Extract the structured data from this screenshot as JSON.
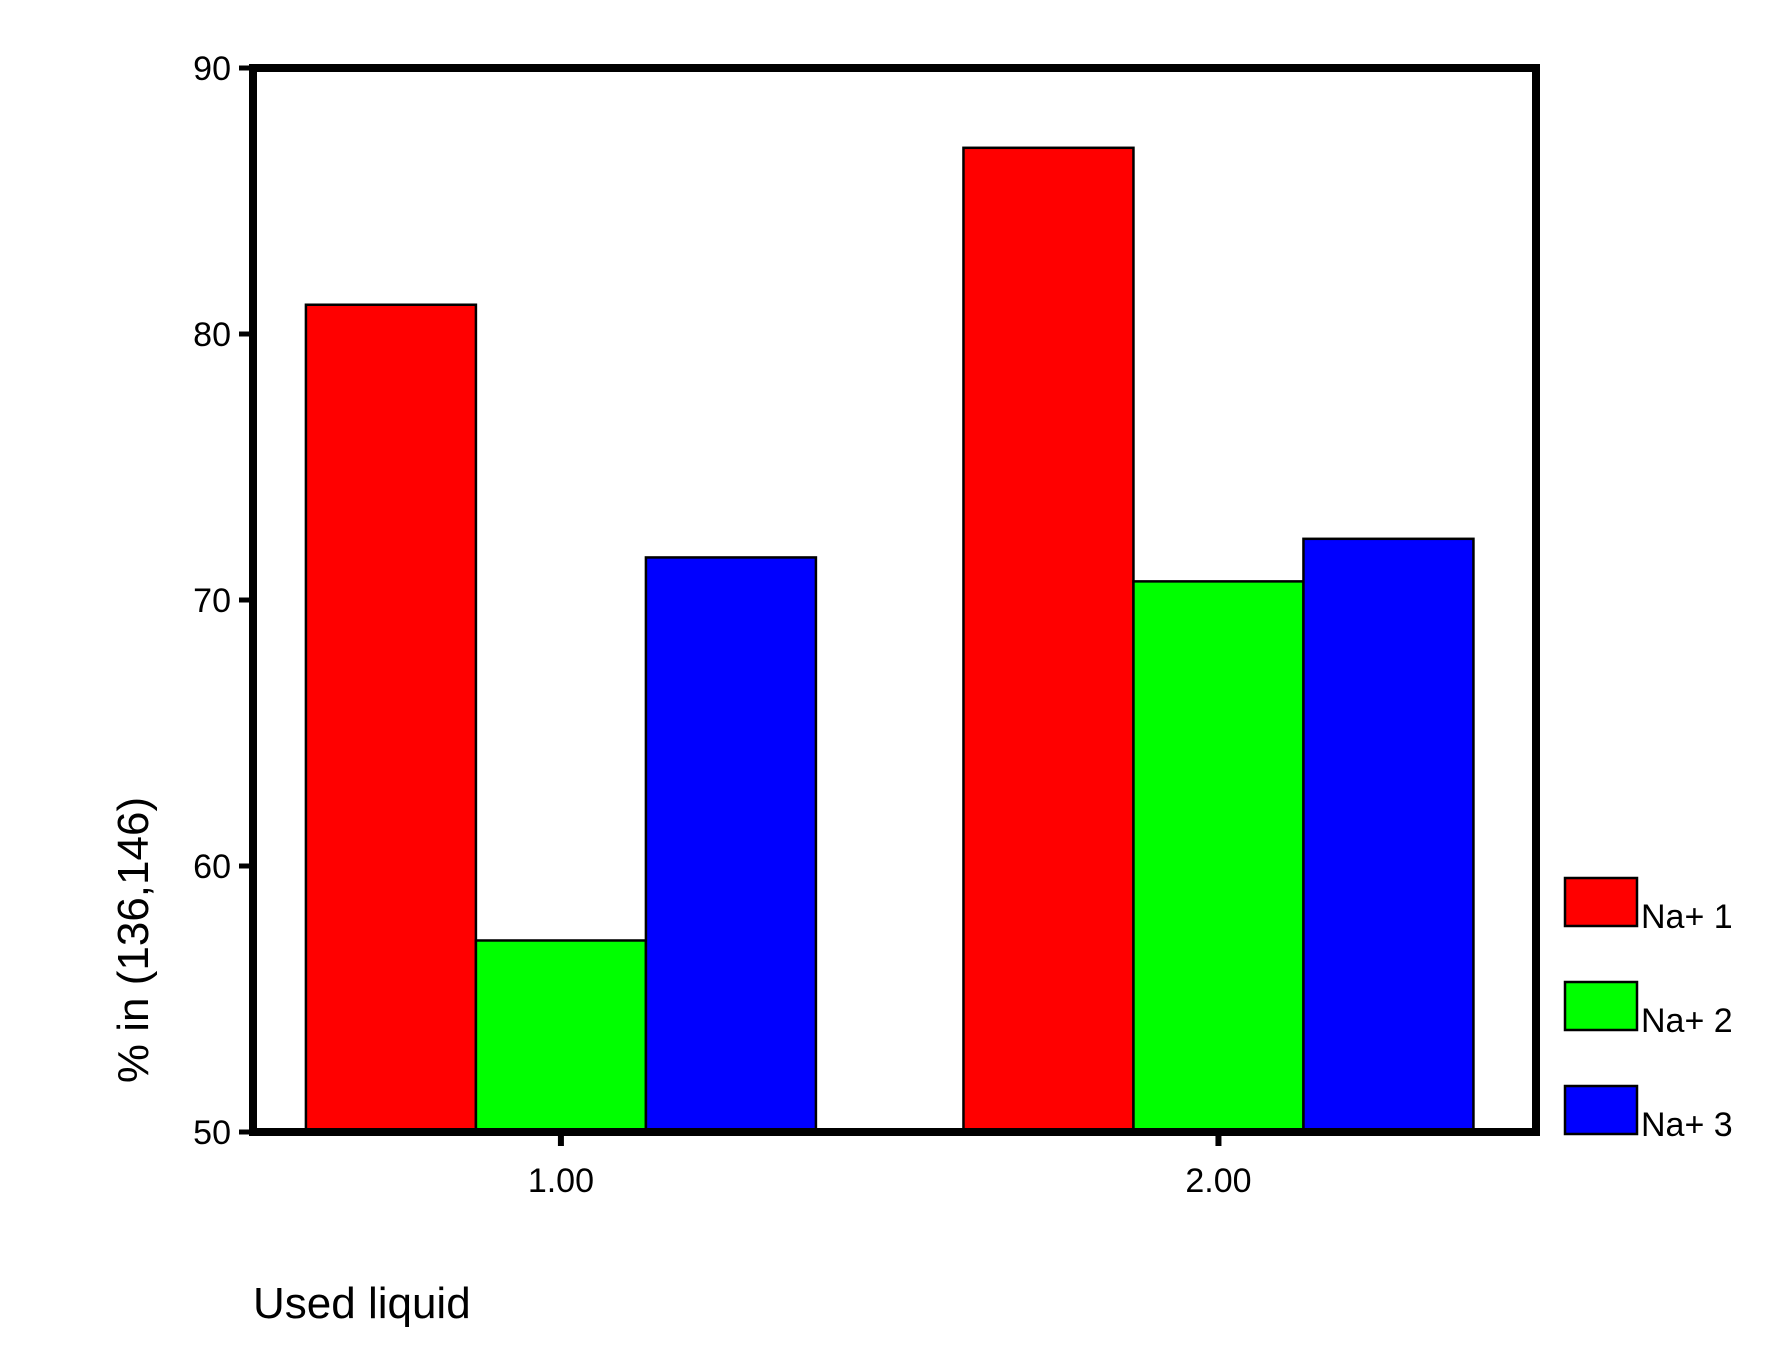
{
  "chart_data": {
    "type": "bar",
    "title": "",
    "xlabel": "Used liquid",
    "ylabel": "% in (136,146)",
    "ylim": [
      50,
      90
    ],
    "yticks": [
      "50",
      "60",
      "70",
      "80",
      "90"
    ],
    "categories": [
      "1.00",
      "2.00"
    ],
    "series": [
      {
        "name": "Na+ 1",
        "color": "#ff0000",
        "values": [
          81.1,
          87.0
        ]
      },
      {
        "name": "Na+ 2",
        "color": "#00ff00",
        "values": [
          57.2,
          70.7
        ]
      },
      {
        "name": "Na+ 3",
        "color": "#0000ff",
        "values": [
          71.6,
          72.3
        ]
      }
    ],
    "legend_position": "right",
    "grid": false
  }
}
